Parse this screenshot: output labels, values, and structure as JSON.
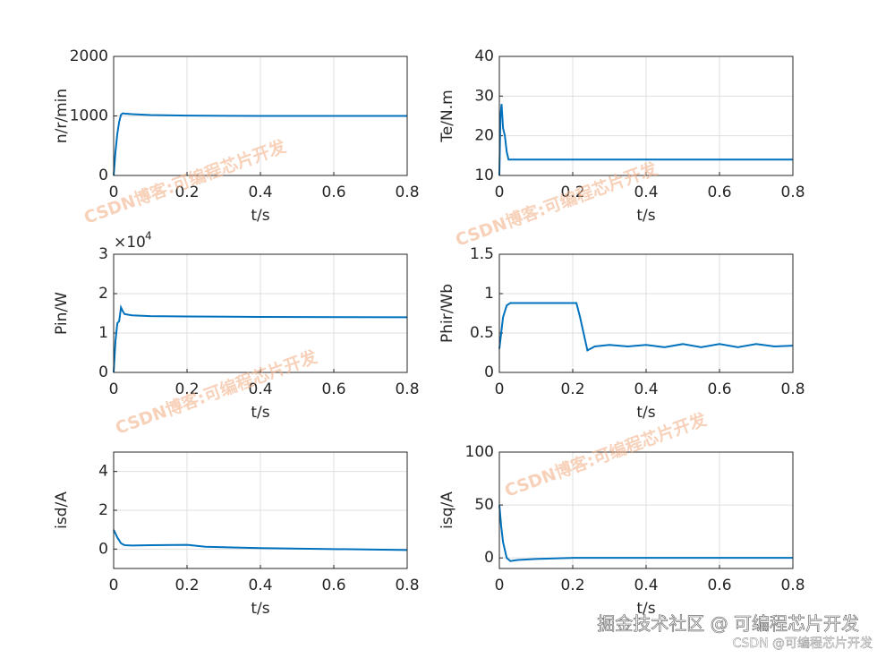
{
  "chart_data": [
    {
      "type": "line",
      "ylabel": "n/r/min",
      "xlabel": "t/s",
      "color": "#0072bd",
      "grid": true,
      "xlim": [
        0,
        0.8
      ],
      "xticks": [
        0,
        0.2,
        0.4,
        0.6,
        0.8
      ],
      "ylim": [
        0,
        2000
      ],
      "yticks": [
        0,
        1000,
        2000
      ],
      "x": [
        0,
        0.005,
        0.01,
        0.015,
        0.02,
        0.025,
        0.03,
        0.05,
        0.1,
        0.2,
        0.4,
        0.6,
        0.8
      ],
      "values": [
        0,
        400,
        700,
        900,
        1020,
        1045,
        1040,
        1030,
        1015,
        1005,
        1000,
        1000,
        1000
      ]
    },
    {
      "type": "line",
      "ylabel": "Te/N.m",
      "xlabel": "t/s",
      "color": "#0072bd",
      "grid": true,
      "xlim": [
        0,
        0.8
      ],
      "xticks": [
        0,
        0.2,
        0.4,
        0.6,
        0.8
      ],
      "ylim": [
        10,
        40
      ],
      "yticks": [
        10,
        20,
        30,
        40
      ],
      "x": [
        0,
        0.003,
        0.006,
        0.01,
        0.015,
        0.02,
        0.025,
        0.03,
        0.1,
        0.4,
        0.8
      ],
      "values": [
        10,
        25,
        28,
        22,
        20,
        16,
        14,
        14,
        14,
        14,
        14
      ]
    },
    {
      "type": "line",
      "ylabel": "Pin/W",
      "xlabel": "t/s",
      "color": "#0072bd",
      "grid": true,
      "y_multiplier": {
        "base": "×10",
        "power": "4"
      },
      "xlim": [
        0,
        0.8
      ],
      "xticks": [
        0,
        0.2,
        0.4,
        0.6,
        0.8
      ],
      "ylim": [
        0,
        30000
      ],
      "yticks": [
        0,
        {
          "value": 10000,
          "label": "1"
        },
        {
          "value": 20000,
          "label": "2"
        },
        {
          "value": 30000,
          "label": "3"
        }
      ],
      "x": [
        0,
        0.005,
        0.01,
        0.015,
        0.02,
        0.025,
        0.03,
        0.05,
        0.1,
        0.2,
        0.4,
        0.8
      ],
      "values": [
        0,
        8000,
        12500,
        13000,
        16500,
        15500,
        14800,
        14500,
        14300,
        14200,
        14100,
        14000
      ]
    },
    {
      "type": "line",
      "ylabel": "Phir/Wb",
      "xlabel": "t/s",
      "color": "#0072bd",
      "grid": true,
      "xlim": [
        0,
        0.8
      ],
      "xticks": [
        0,
        0.2,
        0.4,
        0.6,
        0.8
      ],
      "ylim": [
        0,
        1.5
      ],
      "yticks": [
        0,
        0.5,
        1,
        1.5
      ],
      "x": [
        0,
        0.01,
        0.02,
        0.03,
        0.2,
        0.21,
        0.22,
        0.24,
        0.26,
        0.3,
        0.35,
        0.4,
        0.45,
        0.5,
        0.55,
        0.6,
        0.65,
        0.7,
        0.75,
        0.8
      ],
      "values": [
        0.3,
        0.7,
        0.85,
        0.88,
        0.88,
        0.88,
        0.7,
        0.28,
        0.33,
        0.35,
        0.33,
        0.35,
        0.32,
        0.36,
        0.32,
        0.36,
        0.32,
        0.36,
        0.33,
        0.34
      ]
    },
    {
      "type": "line",
      "ylabel": "isd/A",
      "xlabel": "t/s",
      "color": "#0072bd",
      "grid": true,
      "xlim": [
        0,
        0.8
      ],
      "xticks": [
        0,
        0.2,
        0.4,
        0.6,
        0.8
      ],
      "ylim": [
        -1,
        5
      ],
      "yticks": [
        0,
        2,
        4
      ],
      "x": [
        0,
        0.01,
        0.02,
        0.03,
        0.05,
        0.1,
        0.2,
        0.21,
        0.25,
        0.4,
        0.6,
        0.8
      ],
      "values": [
        1,
        0.6,
        0.3,
        0.2,
        0.18,
        0.2,
        0.22,
        0.2,
        0.12,
        0.05,
        0,
        -0.05
      ]
    },
    {
      "type": "line",
      "ylabel": "isq/A",
      "xlabel": "t/s",
      "color": "#0072bd",
      "grid": true,
      "xlim": [
        0,
        0.8
      ],
      "xticks": [
        0,
        0.2,
        0.4,
        0.6,
        0.8
      ],
      "ylim": [
        -10,
        100
      ],
      "yticks": [
        0,
        50,
        100
      ],
      "x": [
        0,
        0.005,
        0.01,
        0.02,
        0.03,
        0.05,
        0.1,
        0.2,
        0.4,
        0.8
      ],
      "values": [
        50,
        30,
        15,
        0,
        -3,
        -2,
        -1,
        0,
        0,
        0
      ]
    }
  ],
  "watermarks": {
    "diagonal": "CSDN博客:可编程芯片开发",
    "footer": "掘金技术社区 @ 可编程芯片开发",
    "corner": "CSDN @可编程芯片开发"
  }
}
